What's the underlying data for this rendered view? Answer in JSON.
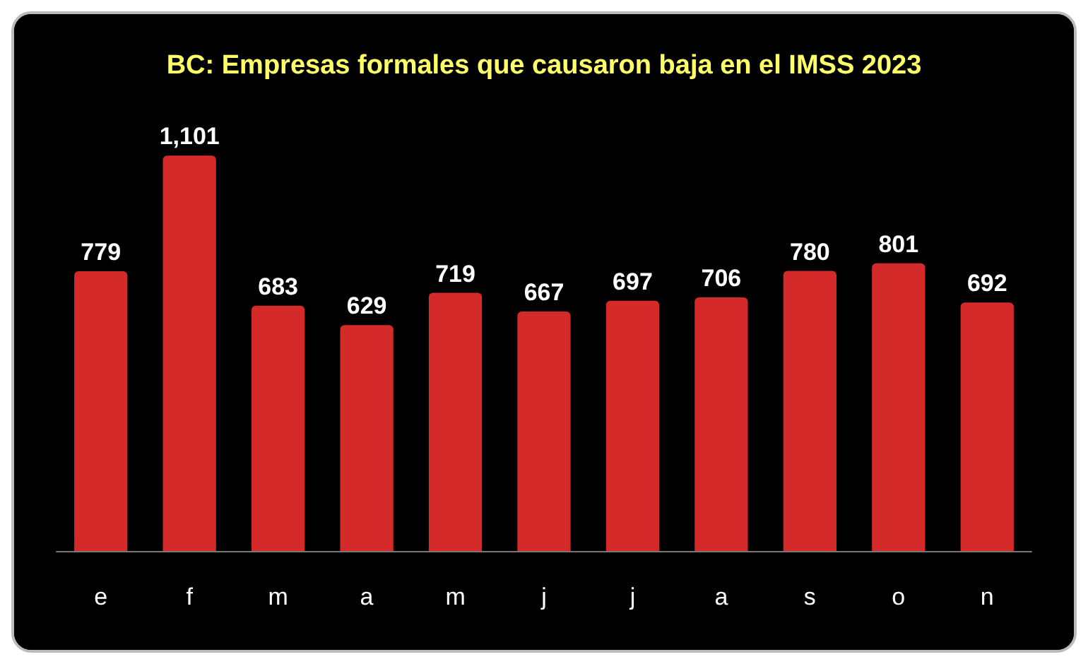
{
  "chart_data": {
    "type": "bar",
    "title": "BC: Empresas formales que causaron baja en el IMSS 2023",
    "categories": [
      "e",
      "f",
      "m",
      "a",
      "m",
      "j",
      "j",
      "a",
      "s",
      "o",
      "n"
    ],
    "values": [
      779,
      1101,
      683,
      629,
      719,
      667,
      697,
      706,
      780,
      801,
      692
    ],
    "value_labels": [
      "779",
      "1,101",
      "683",
      "629",
      "719",
      "667",
      "697",
      "706",
      "780",
      "801",
      "692"
    ],
    "color": "#d42a2a"
  }
}
